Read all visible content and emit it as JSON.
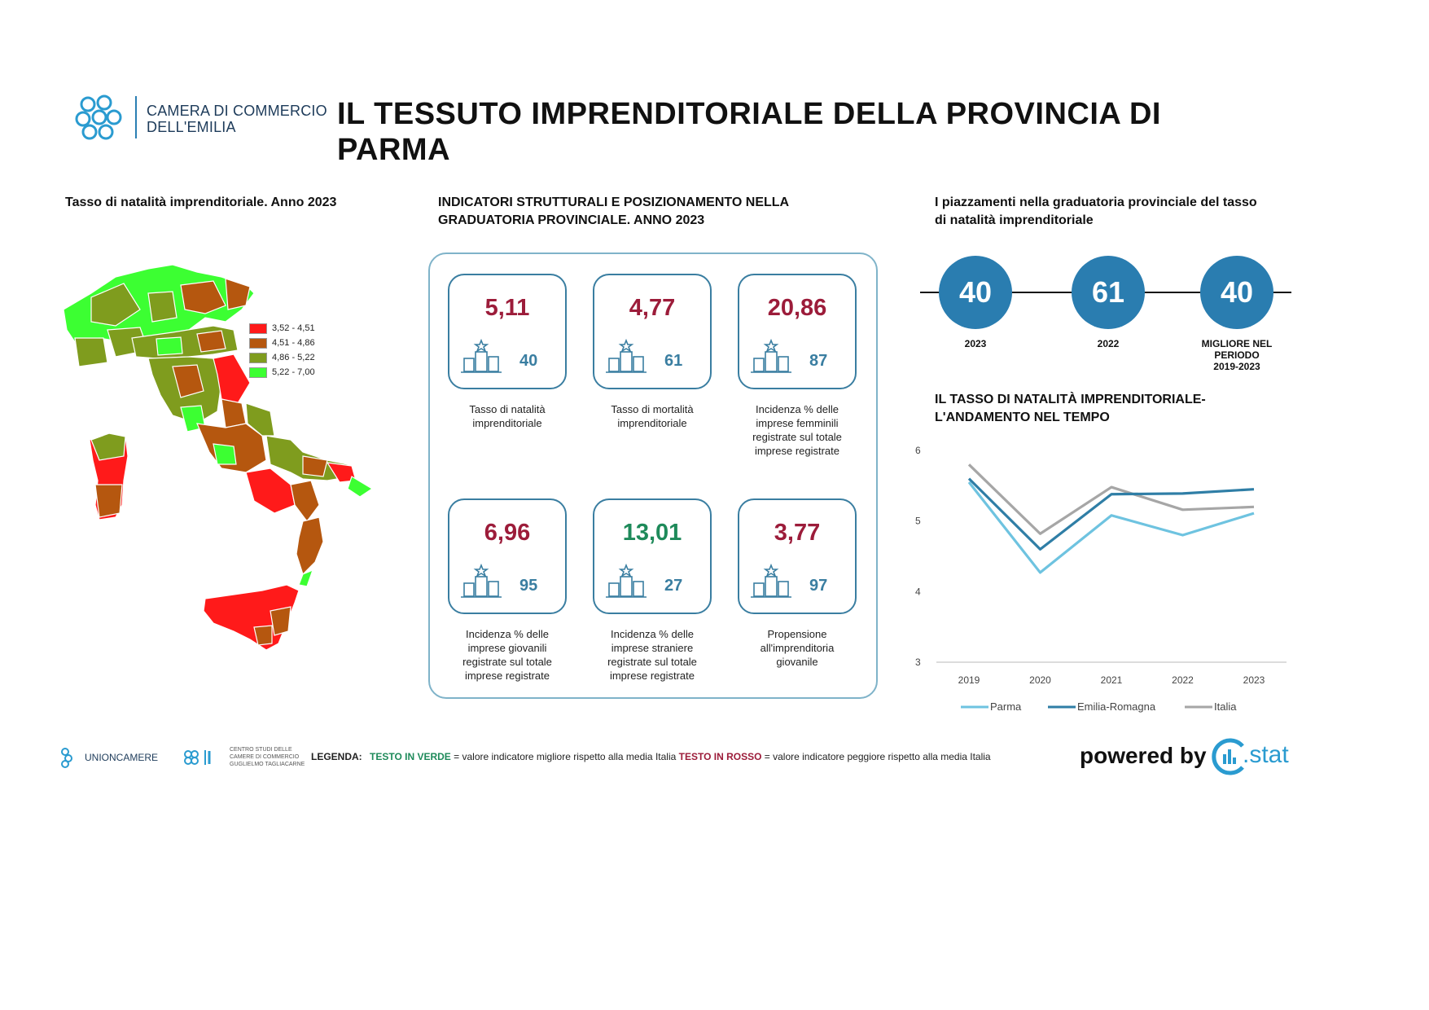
{
  "header": {
    "org_line1": "CAMERA DI COMMERCIO",
    "org_line2": "DELL'EMILIA",
    "title_line1": "IL TESSUTO IMPRENDITORIALE DELLA PROVINCIA DI",
    "title_line2": "PARMA"
  },
  "map_section": {
    "title": "Tasso di natalità imprenditoriale. Anno 2023",
    "legend": [
      {
        "label": "3,52 - 4,51",
        "color": "#ff1a1a"
      },
      {
        "label": "4,51 - 4,86",
        "color": "#b5570f"
      },
      {
        "label": "4,86 - 5,22",
        "color": "#7f9c1e"
      },
      {
        "label": "5,22 - 7,00",
        "color": "#3cff32"
      }
    ]
  },
  "indicators": {
    "title_line1": "INDICATORI STRUTTURALI E POSIZIONAMENTO NELLA",
    "title_line2": "GRADUATORIA PROVINCIALE. ANNO 2023",
    "cards": [
      {
        "value": "5,11",
        "rank": "40",
        "caption_lines": [
          "Tasso di natalità",
          "imprenditoriale"
        ],
        "color": "red"
      },
      {
        "value": "4,77",
        "rank": "61",
        "caption_lines": [
          "Tasso di mortalità",
          "imprenditoriale"
        ],
        "color": "red"
      },
      {
        "value": "20,86",
        "rank": "87",
        "caption_lines": [
          "Incidenza % delle",
          "imprese femminili",
          "registrate sul totale",
          "imprese registrate"
        ],
        "color": "red"
      },
      {
        "value": "6,96",
        "rank": "95",
        "caption_lines": [
          "Incidenza % delle",
          "imprese giovanili",
          "registrate sul totale",
          "imprese registrate"
        ],
        "color": "red"
      },
      {
        "value": "13,01",
        "rank": "27",
        "caption_lines": [
          "Incidenza % delle",
          "imprese straniere",
          "registrate sul totale",
          "imprese registrate"
        ],
        "color": "green"
      },
      {
        "value": "3,77",
        "rank": "97",
        "caption_lines": [
          "Propensione",
          "all'imprenditoria",
          "giovanile"
        ],
        "color": "red"
      }
    ]
  },
  "rankings": {
    "title_line1": "I piazzamenti nella graduatoria provinciale del tasso",
    "title_line2": "di natalità imprenditoriale",
    "items": [
      {
        "value": "40",
        "label_lines": [
          "2023"
        ]
      },
      {
        "value": "61",
        "label_lines": [
          "2022"
        ]
      },
      {
        "value": "40",
        "label_lines": [
          "MIGLIORE NEL",
          "PERIODO",
          "2019-2023"
        ]
      }
    ]
  },
  "trend": {
    "title_line1": "IL TASSO DI NATALITÀ IMPRENDITORIALE-",
    "title_line2": "L'ANDAMENTO NEL TEMPO"
  },
  "chart_data": {
    "type": "line",
    "title": "IL TASSO DI NATALITÀ IMPRENDITORIALE- L'ANDAMENTO NEL TEMPO",
    "x": [
      "2019",
      "2020",
      "2021",
      "2022",
      "2023"
    ],
    "ylim": [
      3,
      6
    ],
    "yticks": [
      "3",
      "4",
      "5",
      "6"
    ],
    "grid": false,
    "legend_position": "bottom",
    "series": [
      {
        "name": "Parma",
        "values": [
          5.55,
          4.27,
          5.08,
          4.8,
          5.11
        ],
        "color": "#6ec3e0"
      },
      {
        "name": "Emilia-Romagna",
        "values": [
          5.6,
          4.6,
          5.38,
          5.39,
          5.45
        ],
        "color": "#2f7ea6"
      },
      {
        "name": "Italia",
        "values": [
          5.8,
          4.82,
          5.48,
          5.16,
          5.2
        ],
        "color": "#a6a6a6"
      }
    ]
  },
  "footer": {
    "unioncamere": "UNIONCAMERE",
    "centro_line1": "CENTRO STUDI DELLE",
    "centro_line2": "CAMERE DI COMMERCIO",
    "centro_line3": "GUGLIELMO TAGLIACARNE",
    "legend_label": "LEGENDA:",
    "legend_green": "TESTO IN VERDE",
    "legend_green_text": "= valore indicatore migliore rispetto alla media Italia",
    "legend_red": "TESTO IN ROSSO",
    "legend_red_text": "= valore indicatore peggiore rispetto alla media Italia",
    "powered_by": "powered by",
    "brand": ".stat"
  }
}
